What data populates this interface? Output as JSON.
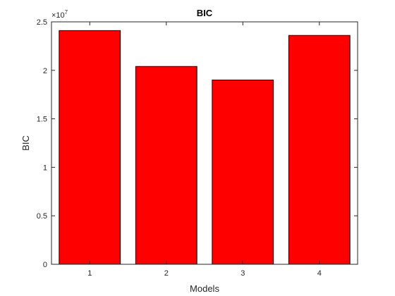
{
  "chart_data": {
    "type": "bar",
    "title": "BIC",
    "xlabel": "Models",
    "ylabel": "BIC",
    "categories": [
      "1",
      "2",
      "3",
      "4"
    ],
    "values": [
      24100000,
      20400000,
      19000000,
      23600000
    ],
    "ylim": [
      0,
      25000000
    ],
    "yticks": [
      0,
      5000000,
      10000000,
      15000000,
      20000000,
      25000000
    ],
    "ytick_labels": [
      "0",
      "0.5",
      "1",
      "1.5",
      "2",
      "2.5"
    ],
    "y_exponent_base": "×10",
    "y_exponent_power": "7",
    "bar_color": "#ff0000",
    "bar_edge_color": "#000000",
    "grid": false
  }
}
